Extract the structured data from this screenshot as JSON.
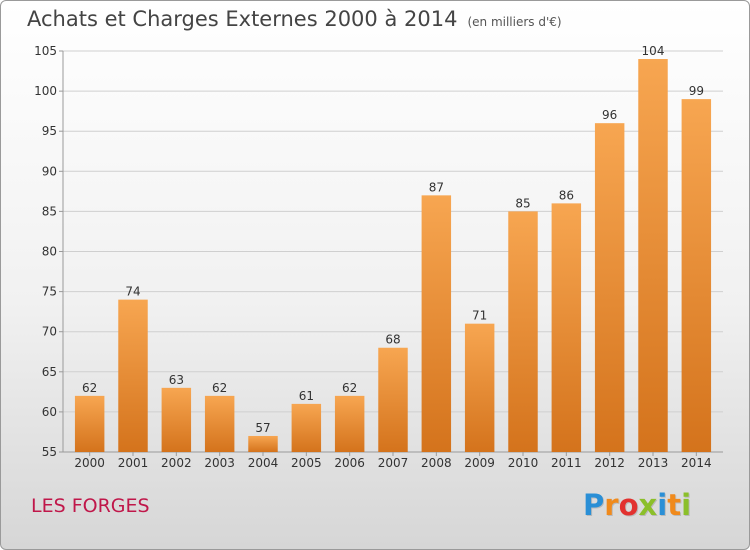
{
  "title": "Achats et Charges Externes 2000 à 2014",
  "subtitle": "(en milliers d'€)",
  "place": "LES FORGES",
  "logo": {
    "text": "Proxiti",
    "letters": [
      {
        "ch": "P",
        "color": "#2a8fd6"
      },
      {
        "ch": "r",
        "color": "#f08a1c"
      },
      {
        "ch": "o",
        "color": "#e2312f"
      },
      {
        "ch": "x",
        "color": "#8bbf2a"
      },
      {
        "ch": "i",
        "color": "#2a8fd6"
      },
      {
        "ch": "t",
        "color": "#f08a1c"
      },
      {
        "ch": "i",
        "color": "#8bbf2a"
      }
    ]
  },
  "colors": {
    "bar_light": "#f7a651",
    "bar_dark": "#d4731c",
    "grid": "#cfcfcf",
    "axis": "#9a9a9a"
  },
  "chart_data": {
    "type": "bar",
    "categories": [
      "2000",
      "2001",
      "2002",
      "2003",
      "2004",
      "2005",
      "2006",
      "2007",
      "2008",
      "2009",
      "2010",
      "2011",
      "2012",
      "2013",
      "2014"
    ],
    "values": [
      62,
      74,
      63,
      62,
      57,
      61,
      62,
      68,
      87,
      71,
      85,
      86,
      96,
      104,
      99
    ],
    "ylim": [
      55,
      105
    ],
    "yticks": [
      55,
      60,
      65,
      70,
      75,
      80,
      85,
      90,
      95,
      100,
      105
    ],
    "grid": true,
    "legend": "none"
  }
}
